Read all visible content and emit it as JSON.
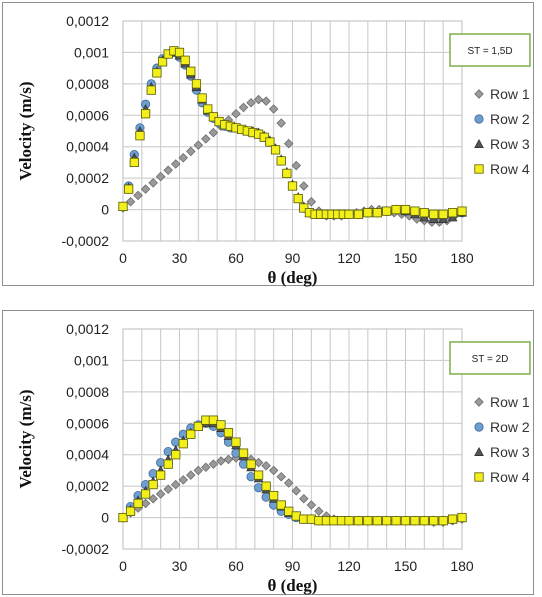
{
  "chart_data": [
    {
      "type": "scatter",
      "xlabel": "θ (deg)",
      "ylabel": "Velocity (m/s)",
      "annotation": "ST = 1,5D",
      "xlim": [
        0,
        180
      ],
      "ylim": [
        -0.0002,
        0.0012
      ],
      "x_ticks": [
        "0",
        "30",
        "60",
        "90",
        "120",
        "150",
        "180"
      ],
      "y_ticks": [
        "-0,0002",
        "0",
        "0,0002",
        "0,0004",
        "0,0006",
        "0,0008",
        "0,001",
        "0,0012"
      ],
      "legend_position": "right",
      "grid": true,
      "series": [
        {
          "name": "Row 1",
          "marker": "diamond",
          "color": "#9a9a9a",
          "x": [
            0,
            4,
            8,
            12,
            16,
            20,
            24,
            28,
            32,
            36,
            40,
            44,
            48,
            52,
            56,
            60,
            64,
            68,
            72,
            76,
            80,
            84,
            88,
            92,
            96,
            100,
            104,
            108,
            112,
            116,
            120,
            124,
            128,
            132,
            136,
            140,
            144,
            148,
            152,
            156,
            160,
            164,
            168,
            172,
            176,
            180
          ],
          "y": [
            1e-05,
            5e-05,
            9e-05,
            0.00013,
            0.00017,
            0.00021,
            0.00025,
            0.00029,
            0.00033,
            0.00037,
            0.00041,
            0.00045,
            0.00049,
            0.00053,
            0.00057,
            0.00061,
            0.00065,
            0.00068,
            0.0007,
            0.00069,
            0.00064,
            0.00055,
            0.00042,
            0.00028,
            0.00015,
            5e-05,
            -1e-05,
            -4e-05,
            -4e-05,
            -4e-05,
            -3e-05,
            -2e-05,
            -1e-05,
            0.0,
            0.0,
            -1e-05,
            -2e-05,
            -3e-05,
            -4e-05,
            -6e-05,
            -7e-05,
            -8e-05,
            -8e-05,
            -7e-05,
            -4e-05,
            -1e-05
          ]
        },
        {
          "name": "Row 2",
          "marker": "circle",
          "color": "#6f9fd0",
          "x": [
            0,
            3,
            6,
            9,
            12,
            15,
            18,
            21,
            24,
            27,
            30,
            33,
            36,
            39,
            42,
            45,
            48,
            51,
            54,
            57,
            60,
            63,
            66,
            69,
            72,
            75,
            78,
            81,
            84,
            87,
            90,
            93,
            96,
            99,
            102,
            105,
            108,
            111,
            114,
            117,
            120,
            125,
            130,
            135,
            140,
            145,
            150,
            155,
            160,
            165,
            170,
            175,
            180
          ],
          "y": [
            2e-05,
            0.00015,
            0.00035,
            0.00052,
            0.00067,
            0.0008,
            0.0009,
            0.00096,
            0.00099,
            0.001,
            0.00097,
            0.00092,
            0.00085,
            0.00076,
            0.00068,
            0.00062,
            0.00058,
            0.00055,
            0.00053,
            0.00052,
            0.00052,
            0.00051,
            0.0005,
            0.00049,
            0.00048,
            0.00046,
            0.00043,
            0.00038,
            0.00031,
            0.00023,
            0.00015,
            7e-05,
            1e-05,
            -2e-05,
            -3e-05,
            -3e-05,
            -3e-05,
            -3e-05,
            -3e-05,
            -3e-05,
            -3e-05,
            -3e-05,
            -2e-05,
            -2e-05,
            -1e-05,
            0.0,
            -1e-05,
            -2e-05,
            -4e-05,
            -5e-05,
            -5e-05,
            -4e-05,
            -2e-05
          ]
        },
        {
          "name": "Row 3",
          "marker": "triangle",
          "color": "#555555",
          "x": [
            0,
            3,
            6,
            9,
            12,
            15,
            18,
            21,
            24,
            27,
            30,
            33,
            36,
            39,
            42,
            45,
            48,
            51,
            54,
            57,
            60,
            63,
            66,
            69,
            72,
            75,
            78,
            81,
            84,
            87,
            90,
            93,
            96,
            99,
            102,
            105,
            108,
            111,
            114,
            117,
            120,
            125,
            130,
            135,
            140,
            145,
            150,
            155,
            160,
            165,
            170,
            175,
            180
          ],
          "y": [
            2e-05,
            0.00014,
            0.00033,
            0.0005,
            0.00064,
            0.00078,
            0.00088,
            0.00095,
            0.00099,
            0.001,
            0.00098,
            0.00093,
            0.00086,
            0.00078,
            0.0007,
            0.00063,
            0.00059,
            0.00056,
            0.00054,
            0.00053,
            0.00052,
            0.00051,
            0.0005,
            0.0005,
            0.00049,
            0.00047,
            0.00044,
            0.00039,
            0.00032,
            0.00024,
            0.00016,
            8e-05,
            2e-05,
            -2e-05,
            -3e-05,
            -3e-05,
            -3e-05,
            -3e-05,
            -3e-05,
            -3e-05,
            -3e-05,
            -3e-05,
            -2e-05,
            -2e-05,
            -1e-05,
            0.0,
            -1e-05,
            -3e-05,
            -5e-05,
            -6e-05,
            -6e-05,
            -5e-05,
            -2e-05
          ]
        },
        {
          "name": "Row 4",
          "marker": "square",
          "color": "#f2ef1a",
          "x": [
            0,
            3,
            6,
            9,
            12,
            15,
            18,
            21,
            24,
            27,
            30,
            33,
            36,
            39,
            42,
            45,
            48,
            51,
            54,
            57,
            60,
            63,
            66,
            69,
            72,
            75,
            78,
            81,
            84,
            87,
            90,
            93,
            96,
            99,
            102,
            105,
            108,
            111,
            114,
            117,
            120,
            125,
            130,
            135,
            140,
            145,
            150,
            155,
            160,
            165,
            170,
            175,
            180
          ],
          "y": [
            2e-05,
            0.00013,
            0.0003,
            0.00047,
            0.00061,
            0.00076,
            0.00087,
            0.00094,
            0.00099,
            0.00101,
            0.001,
            0.00095,
            0.00088,
            0.0008,
            0.00071,
            0.00064,
            0.00059,
            0.00056,
            0.00054,
            0.00053,
            0.00052,
            0.00051,
            0.0005,
            0.00049,
            0.00048,
            0.00046,
            0.00043,
            0.00038,
            0.00031,
            0.00023,
            0.00015,
            7e-05,
            1e-05,
            -2e-05,
            -3e-05,
            -3e-05,
            -3e-05,
            -3e-05,
            -3e-05,
            -3e-05,
            -3e-05,
            -3e-05,
            -2e-05,
            -2e-05,
            -1e-05,
            0.0,
            0.0,
            -1e-05,
            -2e-05,
            -3e-05,
            -3e-05,
            -2e-05,
            -1e-05
          ]
        }
      ]
    },
    {
      "type": "scatter",
      "xlabel": "θ (deg)",
      "ylabel": "Velocity (m/s)",
      "annotation": "ST = 2D",
      "xlim": [
        0,
        180
      ],
      "ylim": [
        -0.0002,
        0.0012
      ],
      "x_ticks": [
        "0",
        "30",
        "60",
        "90",
        "120",
        "150",
        "180"
      ],
      "y_ticks": [
        "-0,0002",
        "0",
        "0,0002",
        "0,0004",
        "0,0006",
        "0,0008",
        "0,001",
        "0,0012"
      ],
      "legend_position": "right",
      "grid": true,
      "series": [
        {
          "name": "Row 1",
          "marker": "diamond",
          "color": "#9a9a9a",
          "x": [
            0,
            4,
            8,
            12,
            16,
            20,
            24,
            28,
            32,
            36,
            40,
            44,
            48,
            52,
            56,
            60,
            64,
            68,
            72,
            76,
            80,
            84,
            88,
            92,
            96,
            100,
            104,
            108,
            112,
            116,
            120,
            125,
            130,
            135,
            140,
            145,
            150,
            155,
            160,
            165,
            170,
            175,
            180
          ],
          "y": [
            0.0,
            3e-05,
            6e-05,
            9e-05,
            0.00012,
            0.00015,
            0.00018,
            0.00021,
            0.00024,
            0.00027,
            0.0003,
            0.00032,
            0.00034,
            0.00036,
            0.00037,
            0.00038,
            0.00038,
            0.00037,
            0.00035,
            0.00033,
            0.0003,
            0.00026,
            0.00022,
            0.00017,
            0.00012,
            8e-05,
            4e-05,
            1e-05,
            -1e-05,
            -2e-05,
            -2e-05,
            -2e-05,
            -2e-05,
            -2e-05,
            -2e-05,
            -2e-05,
            -2e-05,
            -2e-05,
            -2e-05,
            -3e-05,
            -3e-05,
            -2e-05,
            -1e-05
          ]
        },
        {
          "name": "Row 2",
          "marker": "circle",
          "color": "#6f9fd0",
          "x": [
            0,
            4,
            8,
            12,
            16,
            20,
            24,
            28,
            32,
            36,
            40,
            44,
            48,
            52,
            56,
            60,
            64,
            68,
            72,
            76,
            80,
            84,
            88,
            92,
            96,
            100,
            104,
            108,
            112,
            116,
            120,
            125,
            130,
            135,
            140,
            145,
            150,
            155,
            160,
            165,
            170,
            175,
            180
          ],
          "y": [
            0.0,
            7e-05,
            0.00014,
            0.00021,
            0.00028,
            0.00035,
            0.00042,
            0.00048,
            0.00053,
            0.00057,
            0.00059,
            0.0006,
            0.00058,
            0.00054,
            0.00048,
            0.00041,
            0.00034,
            0.00026,
            0.00019,
            0.00013,
            8e-05,
            4e-05,
            2e-05,
            0.0,
            -1e-05,
            -1e-05,
            -2e-05,
            -2e-05,
            -2e-05,
            -2e-05,
            -2e-05,
            -2e-05,
            -2e-05,
            -2e-05,
            -2e-05,
            -2e-05,
            -2e-05,
            -2e-05,
            -2e-05,
            -2e-05,
            -2e-05,
            -1e-05,
            0.0
          ]
        },
        {
          "name": "Row 3",
          "marker": "triangle",
          "color": "#555555",
          "x": [
            0,
            4,
            8,
            12,
            16,
            20,
            24,
            28,
            32,
            36,
            40,
            44,
            48,
            52,
            56,
            60,
            64,
            68,
            72,
            76,
            80,
            84,
            88,
            92,
            96,
            100,
            104,
            108,
            112,
            116,
            120,
            125,
            130,
            135,
            140,
            145,
            150,
            155,
            160,
            165,
            170,
            175,
            180
          ],
          "y": [
            0.0,
            5e-05,
            0.00011,
            0.00017,
            0.00023,
            0.0003,
            0.00037,
            0.00043,
            0.00049,
            0.00054,
            0.00058,
            0.0006,
            0.0006,
            0.00057,
            0.00052,
            0.00046,
            0.00039,
            0.00032,
            0.00025,
            0.00018,
            0.00012,
            7e-05,
            3e-05,
            1e-05,
            -1e-05,
            -1e-05,
            -2e-05,
            -2e-05,
            -2e-05,
            -2e-05,
            -2e-05,
            -2e-05,
            -2e-05,
            -2e-05,
            -2e-05,
            -2e-05,
            -2e-05,
            -2e-05,
            -2e-05,
            -2e-05,
            -2e-05,
            -1e-05,
            0.0
          ]
        },
        {
          "name": "Row 4",
          "marker": "square",
          "color": "#f2ef1a",
          "x": [
            0,
            4,
            8,
            12,
            16,
            20,
            24,
            28,
            32,
            36,
            40,
            44,
            48,
            52,
            56,
            60,
            64,
            68,
            72,
            76,
            80,
            84,
            88,
            92,
            96,
            100,
            104,
            108,
            112,
            116,
            120,
            125,
            130,
            135,
            140,
            145,
            150,
            155,
            160,
            165,
            170,
            175,
            180
          ],
          "y": [
            0.0,
            4e-05,
            9e-05,
            0.00015,
            0.00021,
            0.00027,
            0.00034,
            0.0004,
            0.00047,
            0.00053,
            0.00058,
            0.00062,
            0.00062,
            0.00059,
            0.00054,
            0.00048,
            0.00041,
            0.00034,
            0.00027,
            0.0002,
            0.00014,
            8e-05,
            4e-05,
            1e-05,
            -1e-05,
            -1e-05,
            -2e-05,
            -2e-05,
            -2e-05,
            -2e-05,
            -2e-05,
            -2e-05,
            -2e-05,
            -2e-05,
            -2e-05,
            -2e-05,
            -2e-05,
            -2e-05,
            -2e-05,
            -2e-05,
            -2e-05,
            -1e-05,
            0.0
          ]
        }
      ]
    }
  ]
}
